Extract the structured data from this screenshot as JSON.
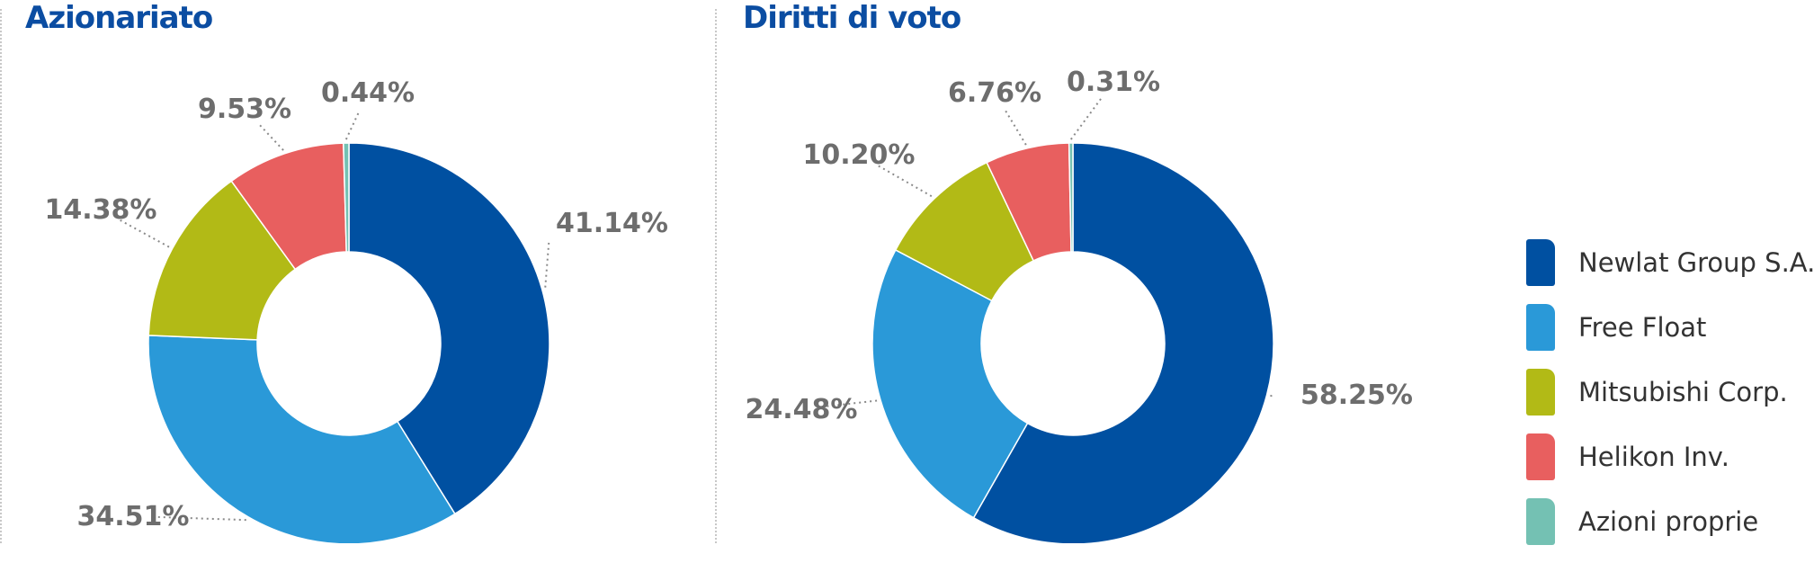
{
  "chart_data": [
    {
      "type": "pie",
      "title": "Azionariato",
      "categories": [
        "Newlat Group S.A.",
        "Free Float",
        "Mitsubishi Corp.",
        "Helikon Inv.",
        "Azioni proprie"
      ],
      "values": [
        41.14,
        34.51,
        14.38,
        9.53,
        0.44
      ],
      "labels": [
        "41.14%",
        "34.51%",
        "14.38%",
        "9.53%",
        "0.44%"
      ],
      "donut": true
    },
    {
      "type": "pie",
      "title": "Diritti di voto",
      "categories": [
        "Newlat Group S.A.",
        "Free Float",
        "Mitsubishi Corp.",
        "Helikon Inv.",
        "Azioni proprie"
      ],
      "values": [
        58.25,
        24.48,
        10.2,
        6.76,
        0.31
      ],
      "labels": [
        "58.25%",
        "24.48%",
        "10.20%",
        "6.76%",
        "0.31%"
      ],
      "donut": true
    }
  ],
  "colors": [
    "#0050a1",
    "#2a99d8",
    "#b2ba16",
    "#e85f5f",
    "#74c1b3"
  ],
  "legend": {
    "placement": "right",
    "items": [
      {
        "label": "Newlat Group S.A.",
        "color": "#0050a1"
      },
      {
        "label": "Free Float",
        "color": "#2a99d8"
      },
      {
        "label": "Mitsubishi Corp.",
        "color": "#b2ba16"
      },
      {
        "label": "Helikon Inv.",
        "color": "#e85f5f"
      },
      {
        "label": "Azioni proprie",
        "color": "#74c1b3"
      }
    ]
  }
}
